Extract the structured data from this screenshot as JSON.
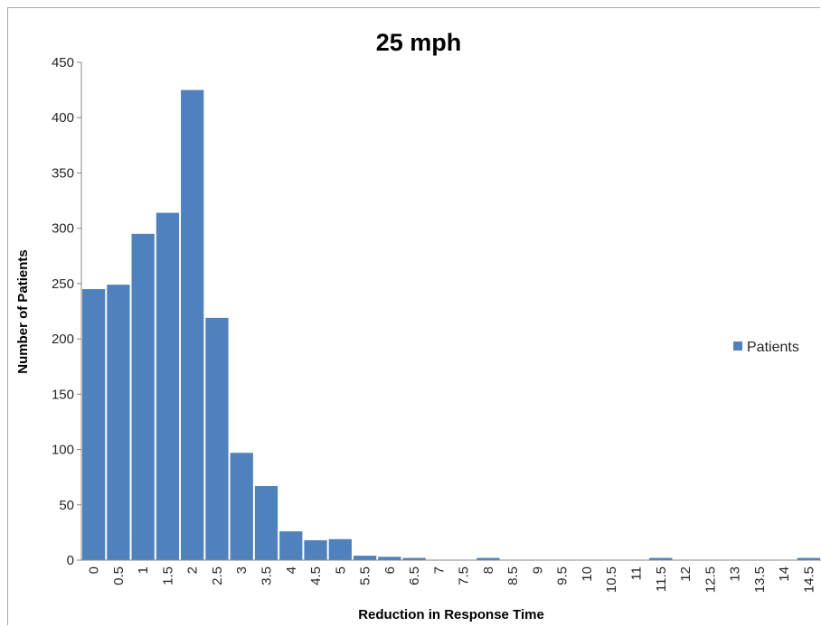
{
  "chart_data": {
    "type": "bar",
    "title": "25 mph",
    "xlabel": "Reduction in Response Time",
    "ylabel": "Number of Patients",
    "ylim": [
      0,
      450
    ],
    "yticks": [
      "0",
      "50",
      "100",
      "150",
      "200",
      "250",
      "300",
      "350",
      "400",
      "450"
    ],
    "grid": false,
    "legend_position": "right",
    "categories": [
      "0",
      "0.5",
      "1",
      "1.5",
      "2",
      "2.5",
      "3",
      "3.5",
      "4",
      "4.5",
      "5",
      "5.5",
      "6",
      "6.5",
      "7",
      "7.5",
      "8",
      "8.5",
      "9",
      "9.5",
      "10",
      "10.5",
      "11",
      "11.5",
      "12",
      "12.5",
      "13",
      "13.5",
      "14",
      "14.5"
    ],
    "series": [
      {
        "name": "Patients",
        "color": "#4f81bd",
        "values": [
          245,
          249,
          295,
          314,
          425,
          219,
          97,
          67,
          26,
          18,
          19,
          4,
          3,
          2,
          0,
          0,
          2,
          0,
          0,
          0,
          0,
          0,
          0,
          2,
          0,
          0,
          0,
          0,
          0,
          2
        ]
      }
    ]
  }
}
